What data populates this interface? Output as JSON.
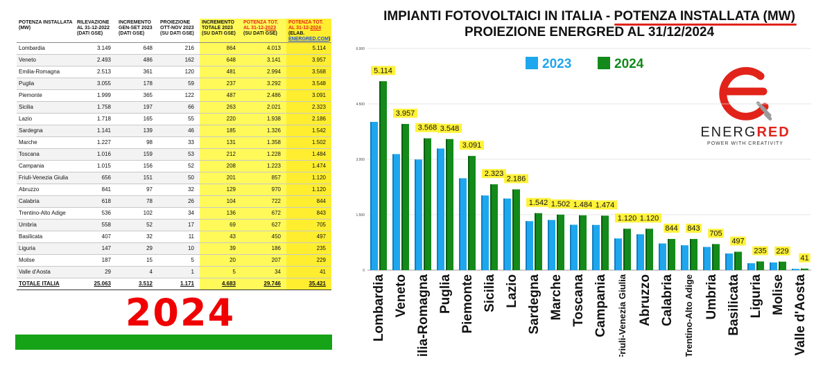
{
  "table": {
    "headers": {
      "region": "POTENZA INSTALLATA (MW)",
      "rilevazione": "RILEVAZIONE AL 31-12-2022 (DATI GSE)",
      "incremento": "INCREMENTO GEN-SET 2023 (DATI GSE)",
      "proiezione": "PROIEZIONE OTT-NOV 2023 (SU DATI GSE)",
      "incremento_totale": "INCREMENTO TOTALE 2023 (SU DATI GSE)",
      "pot2023_prefix": "POTENZA TOT. AL 31-12-",
      "pot2023_year": "2023",
      "pot2023_suffix": " (SU DATI GSE)",
      "pot2024_prefix": "POTENZA TOT. AL 31-12-",
      "pot2024_year": "2024",
      "pot2024_mid": " (ELAB. ",
      "pot2024_link": "ENERGRED.COM",
      "pot2024_suffix": ")"
    },
    "rows": [
      [
        "Lombardia",
        "3.149",
        "648",
        "216",
        "864",
        "4.013",
        "5.114"
      ],
      [
        "Veneto",
        "2.493",
        "486",
        "162",
        "648",
        "3.141",
        "3.957"
      ],
      [
        "Emilia-Romagna",
        "2.513",
        "361",
        "120",
        "481",
        "2.994",
        "3.568"
      ],
      [
        "Puglia",
        "3.055",
        "178",
        "59",
        "237",
        "3.292",
        "3.548"
      ],
      [
        "Piemonte",
        "1.999",
        "365",
        "122",
        "487",
        "2.486",
        "3.091"
      ],
      [
        "Sicilia",
        "1.758",
        "197",
        "66",
        "263",
        "2.021",
        "2.323"
      ],
      [
        "Lazio",
        "1.718",
        "165",
        "55",
        "220",
        "1.938",
        "2.186"
      ],
      [
        "Sardegna",
        "1.141",
        "139",
        "46",
        "185",
        "1.326",
        "1.542"
      ],
      [
        "Marche",
        "1.227",
        "98",
        "33",
        "131",
        "1.358",
        "1.502"
      ],
      [
        "Toscana",
        "1.016",
        "159",
        "53",
        "212",
        "1.228",
        "1.484"
      ],
      [
        "Campania",
        "1.015",
        "156",
        "52",
        "208",
        "1.223",
        "1.474"
      ],
      [
        "Friuli-Venezia Giulia",
        "656",
        "151",
        "50",
        "201",
        "857",
        "1.120"
      ],
      [
        "Abruzzo",
        "841",
        "97",
        "32",
        "129",
        "970",
        "1.120"
      ],
      [
        "Calabria",
        "618",
        "78",
        "26",
        "104",
        "722",
        "844"
      ],
      [
        "Trentino-Alto Adige",
        "536",
        "102",
        "34",
        "136",
        "672",
        "843"
      ],
      [
        "Umbria",
        "558",
        "52",
        "17",
        "69",
        "627",
        "705"
      ],
      [
        "Basilicata",
        "407",
        "32",
        "11",
        "43",
        "450",
        "497"
      ],
      [
        "Liguria",
        "147",
        "29",
        "10",
        "39",
        "186",
        "235"
      ],
      [
        "Molise",
        "187",
        "15",
        "5",
        "20",
        "207",
        "229"
      ],
      [
        "Valle d'Aosta",
        "29",
        "4",
        "1",
        "5",
        "34",
        "41"
      ]
    ],
    "total": [
      "TOTALE ITALIA",
      "25.063",
      "3.512",
      "1.171",
      "4.683",
      "29.746",
      "35.421"
    ]
  },
  "big_year": "2024",
  "chart_title": {
    "line1_prefix": "IMPIANTI FOTOVOLTAICI IN ITALIA - ",
    "line1_highlight": "POTENZA INSTALLATA (MW)",
    "line2": "PROIEZIONE ENERGRED AL 31/12/2024"
  },
  "logo": {
    "text_prefix": "ENERG",
    "text_red": "RED",
    "tagline": "POWER WITH CREATIVITY"
  },
  "colors": {
    "series_2023": "#1ea7ee",
    "series_2024": "#138a1a",
    "label_bg": "#fff23a",
    "accent_red": "#e2231a"
  },
  "chart_data": {
    "type": "bar",
    "title": "IMPIANTI FOTOVOLTAICI IN ITALIA - POTENZA INSTALLATA (MW)",
    "subtitle": "PROIEZIONE ENERGRED AL 31/12/2024",
    "categories": [
      "Lombardia",
      "Veneto",
      "Emilia-Romagna",
      "Puglia",
      "Piemonte",
      "Sicilia",
      "Lazio",
      "Sardegna",
      "Marche",
      "Toscana",
      "Campania",
      "Friuli-Venezia Giulia",
      "Abruzzo",
      "Calabria",
      "Trentino-Alto Adige",
      "Umbria",
      "Basilicata",
      "Liguria",
      "Molise",
      "Valle d'Aosta"
    ],
    "series": [
      {
        "name": "2023",
        "values": [
          4013,
          3141,
          2994,
          3292,
          2486,
          2021,
          1938,
          1326,
          1358,
          1228,
          1223,
          857,
          970,
          722,
          672,
          627,
          450,
          186,
          207,
          34
        ]
      },
      {
        "name": "2024",
        "values": [
          5114,
          3957,
          3568,
          3548,
          3091,
          2323,
          2186,
          1542,
          1502,
          1484,
          1474,
          1120,
          1120,
          844,
          843,
          705,
          497,
          235,
          229,
          41
        ],
        "labels": [
          "5.114",
          "3.957",
          "3.568",
          "3.548",
          "3.091",
          "2.323",
          "2.186",
          "1.542",
          "1.502",
          "1.484",
          "1.474",
          "1.120",
          "1.120",
          "844",
          "843",
          "705",
          "497",
          "235",
          "229",
          "41"
        ]
      }
    ],
    "yticks": [
      0,
      1500,
      3000,
      4500,
      6000
    ],
    "ytick_labels": [
      "0",
      "1.500",
      "3.000",
      "4.500",
      "6.000"
    ],
    "ylim": [
      0,
      6000
    ],
    "grid": true,
    "legend": "top-center"
  }
}
